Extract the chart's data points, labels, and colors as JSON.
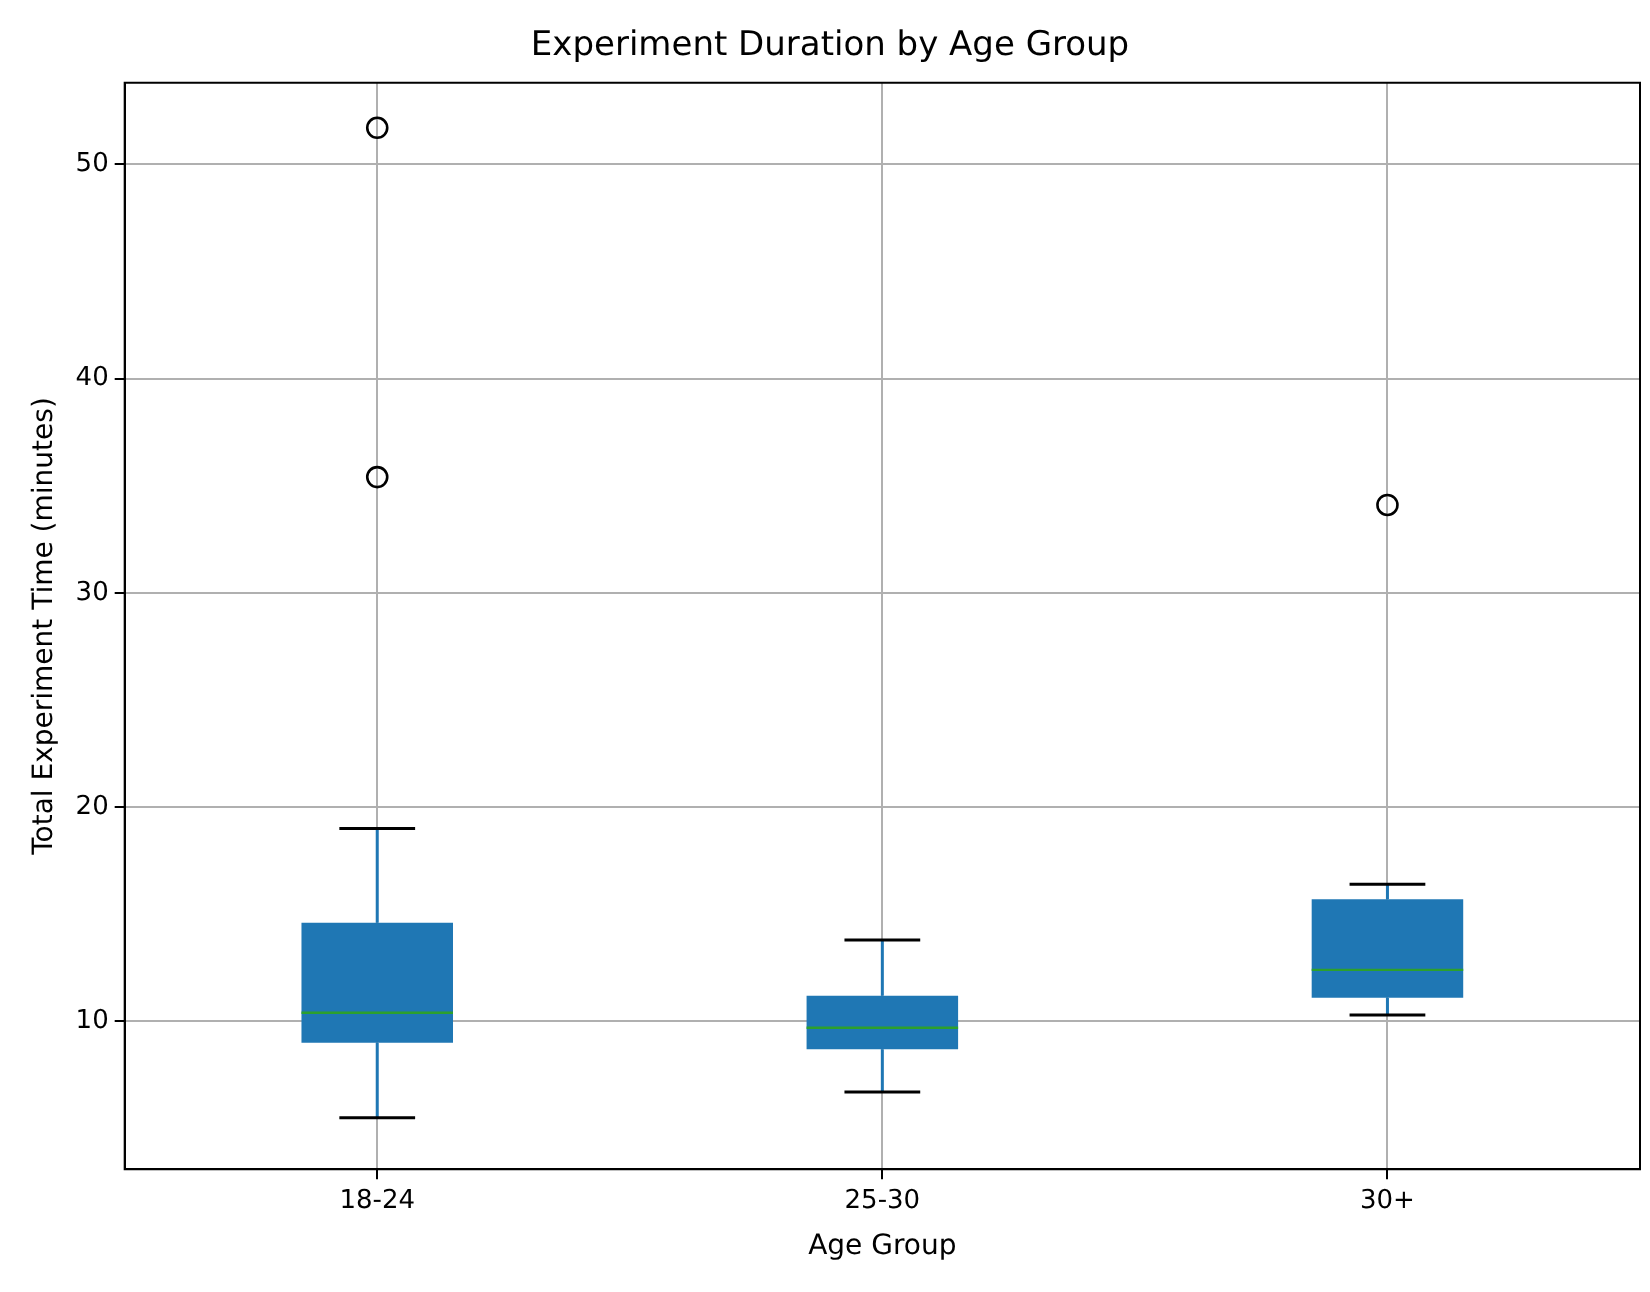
{
  "chart_data": {
    "type": "box",
    "title": "Experiment Duration by Age Group",
    "xlabel": "Age Group",
    "ylabel": "Total Experiment Time (minutes)",
    "categories": [
      "18-24",
      "25-30",
      "30+"
    ],
    "color": "#1f77b4",
    "boxes": [
      {
        "low": 5.5,
        "q1": 9.0,
        "median": 10.4,
        "q3": 14.6,
        "high": 19.0,
        "outliers": [
          51.7,
          35.4
        ]
      },
      {
        "low": 6.7,
        "q1": 8.7,
        "median": 9.7,
        "q3": 11.2,
        "high": 13.8
      },
      {
        "low": 10.3,
        "q1": 11.1,
        "median": 12.4,
        "q3": 15.7,
        "high": 16.4,
        "outliers": [
          34.1
        ]
      }
    ],
    "ylim": [
      3.1,
      53.8
    ],
    "yticks": [
      10,
      20,
      30,
      40,
      50
    ],
    "grid": true,
    "legend": false
  }
}
